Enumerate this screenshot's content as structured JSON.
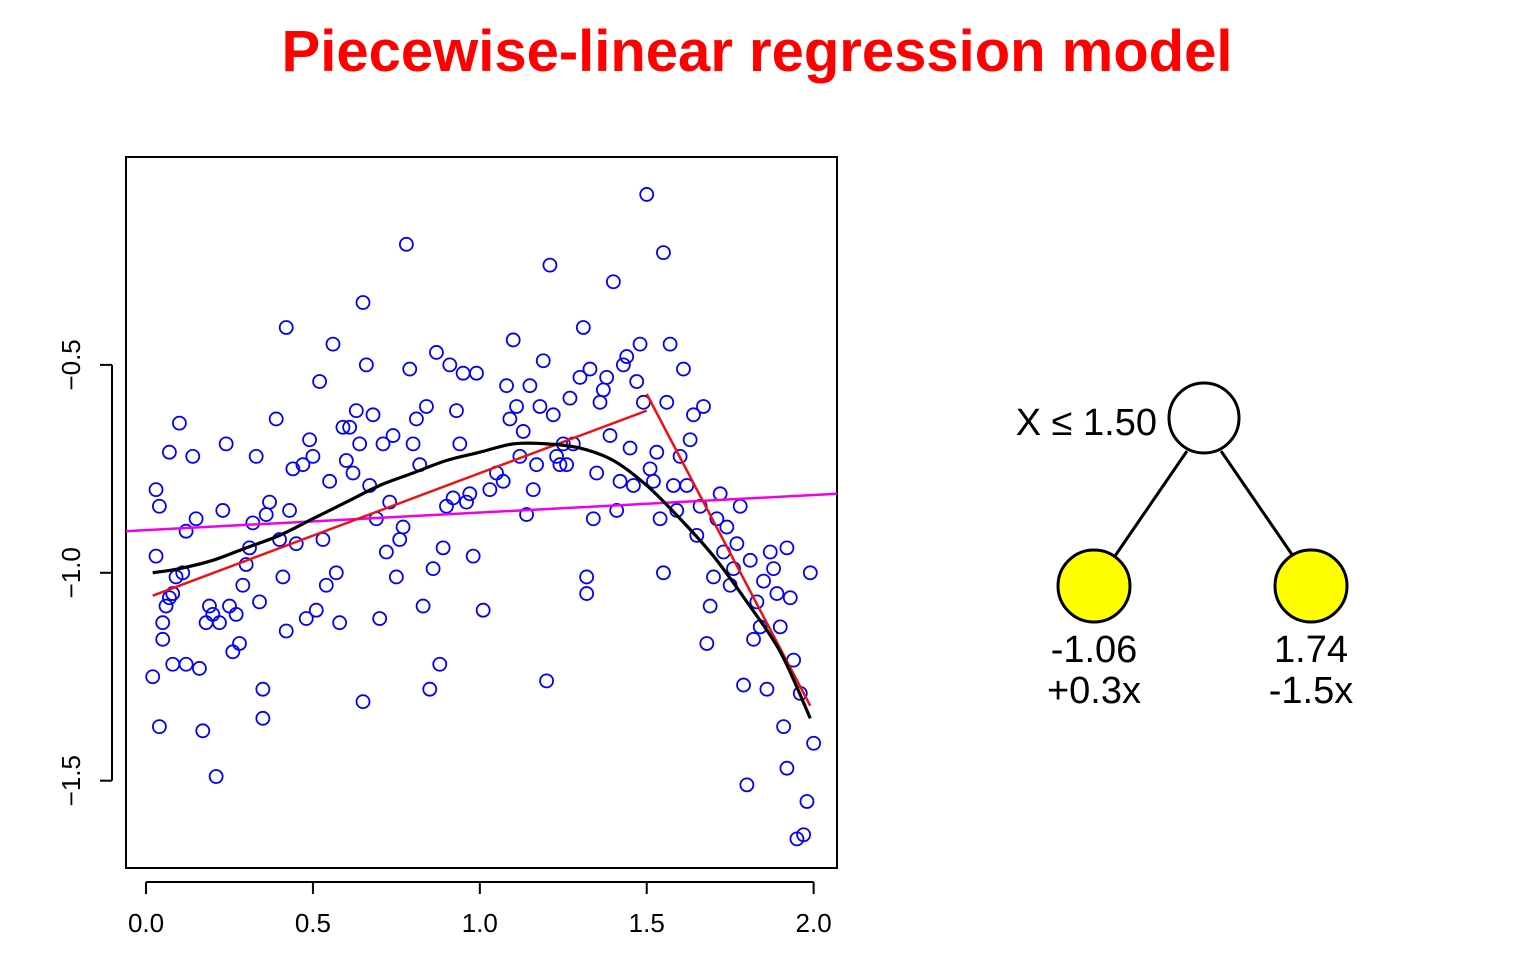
{
  "title": "Piecewise-linear regression model",
  "chart_data": {
    "type": "scatter",
    "xlim": [
      -0.06,
      2.07
    ],
    "ylim": [
      -1.71,
      0.0
    ],
    "x_ticks": [
      {
        "value": 0.0,
        "label": "0.0"
      },
      {
        "value": 0.5,
        "label": "0.5"
      },
      {
        "value": 1.0,
        "label": "1.0"
      },
      {
        "value": 1.5,
        "label": "1.5"
      },
      {
        "value": 2.0,
        "label": "2.0"
      }
    ],
    "y_ticks": [
      {
        "value": -0.5,
        "label": "−0.5"
      },
      {
        "value": -1.0,
        "label": "−1.0"
      },
      {
        "value": -1.5,
        "label": "−1.5"
      }
    ],
    "grid": false,
    "colors": {
      "points": "#0000ff",
      "smooth": "#000000",
      "piecewise": "#ee1111",
      "global_fit": "#ee00ee"
    },
    "points": [
      [
        0.02,
        -1.25
      ],
      [
        0.03,
        -0.96
      ],
      [
        0.03,
        -0.8
      ],
      [
        0.04,
        -0.84
      ],
      [
        0.04,
        -1.37
      ],
      [
        0.05,
        -1.12
      ],
      [
        0.05,
        -1.16
      ],
      [
        0.06,
        -1.08
      ],
      [
        0.07,
        -0.71
      ],
      [
        0.07,
        -1.06
      ],
      [
        0.08,
        -1.05
      ],
      [
        0.08,
        -1.22
      ],
      [
        0.09,
        -1.01
      ],
      [
        0.1,
        -0.64
      ],
      [
        0.11,
        -1.0
      ],
      [
        0.12,
        -0.9
      ],
      [
        0.12,
        -1.22
      ],
      [
        0.14,
        -0.72
      ],
      [
        0.15,
        -0.87
      ],
      [
        0.16,
        -1.23
      ],
      [
        0.17,
        -1.38
      ],
      [
        0.18,
        -1.12
      ],
      [
        0.19,
        -1.08
      ],
      [
        0.2,
        -1.1
      ],
      [
        0.21,
        -1.49
      ],
      [
        0.22,
        -1.12
      ],
      [
        0.23,
        -0.85
      ],
      [
        0.24,
        -0.69
      ],
      [
        0.25,
        -1.08
      ],
      [
        0.26,
        -1.19
      ],
      [
        0.27,
        -1.1
      ],
      [
        0.28,
        -1.17
      ],
      [
        0.29,
        -1.03
      ],
      [
        0.3,
        -0.98
      ],
      [
        0.31,
        -0.94
      ],
      [
        0.32,
        -0.88
      ],
      [
        0.33,
        -0.72
      ],
      [
        0.34,
        -1.07
      ],
      [
        0.35,
        -1.28
      ],
      [
        0.35,
        -1.35
      ],
      [
        0.36,
        -0.86
      ],
      [
        0.37,
        -0.83
      ],
      [
        0.39,
        -0.63
      ],
      [
        0.4,
        -0.92
      ],
      [
        0.41,
        -1.01
      ],
      [
        0.42,
        -1.14
      ],
      [
        0.42,
        -0.41
      ],
      [
        0.43,
        -0.85
      ],
      [
        0.44,
        -0.75
      ],
      [
        0.45,
        -0.93
      ],
      [
        0.47,
        -0.74
      ],
      [
        0.48,
        -1.11
      ],
      [
        0.49,
        -0.68
      ],
      [
        0.5,
        -0.72
      ],
      [
        0.51,
        -1.09
      ],
      [
        0.52,
        -0.54
      ],
      [
        0.53,
        -0.92
      ],
      [
        0.54,
        -1.03
      ],
      [
        0.55,
        -0.78
      ],
      [
        0.56,
        -0.45
      ],
      [
        0.57,
        -1.0
      ],
      [
        0.58,
        -1.12
      ],
      [
        0.59,
        -0.65
      ],
      [
        0.6,
        -0.73
      ],
      [
        0.61,
        -0.65
      ],
      [
        0.62,
        -0.76
      ],
      [
        0.63,
        -0.61
      ],
      [
        0.64,
        -0.69
      ],
      [
        0.65,
        -1.31
      ],
      [
        0.65,
        -0.35
      ],
      [
        0.66,
        -0.5
      ],
      [
        0.67,
        -0.79
      ],
      [
        0.68,
        -0.62
      ],
      [
        0.69,
        -0.87
      ],
      [
        0.7,
        -1.11
      ],
      [
        0.71,
        -0.69
      ],
      [
        0.72,
        -0.95
      ],
      [
        0.73,
        -0.83
      ],
      [
        0.74,
        -0.67
      ],
      [
        0.75,
        -1.01
      ],
      [
        0.76,
        -0.92
      ],
      [
        0.77,
        -0.89
      ],
      [
        0.78,
        -0.21
      ],
      [
        0.79,
        -0.51
      ],
      [
        0.8,
        -0.69
      ],
      [
        0.81,
        -0.63
      ],
      [
        0.82,
        -0.74
      ],
      [
        0.83,
        -1.08
      ],
      [
        0.84,
        -0.6
      ],
      [
        0.85,
        -1.28
      ],
      [
        0.86,
        -0.99
      ],
      [
        0.87,
        -0.47
      ],
      [
        0.88,
        -1.22
      ],
      [
        0.89,
        -0.94
      ],
      [
        0.9,
        -0.84
      ],
      [
        0.91,
        -0.5
      ],
      [
        0.92,
        -0.82
      ],
      [
        0.93,
        -0.61
      ],
      [
        0.94,
        -0.69
      ],
      [
        0.95,
        -0.52
      ],
      [
        0.96,
        -0.83
      ],
      [
        0.97,
        -0.81
      ],
      [
        0.98,
        -0.96
      ],
      [
        0.99,
        -0.52
      ],
      [
        1.01,
        -1.09
      ],
      [
        1.03,
        -0.8
      ],
      [
        1.05,
        -0.76
      ],
      [
        1.07,
        -0.78
      ],
      [
        1.08,
        -0.55
      ],
      [
        1.09,
        -0.63
      ],
      [
        1.1,
        -0.44
      ],
      [
        1.11,
        -0.6
      ],
      [
        1.12,
        -0.72
      ],
      [
        1.13,
        -0.66
      ],
      [
        1.14,
        -0.86
      ],
      [
        1.15,
        -0.55
      ],
      [
        1.16,
        -0.8
      ],
      [
        1.17,
        -0.74
      ],
      [
        1.18,
        -0.6
      ],
      [
        1.19,
        -0.49
      ],
      [
        1.2,
        -1.26
      ],
      [
        1.21,
        -0.26
      ],
      [
        1.22,
        -0.62
      ],
      [
        1.23,
        -0.72
      ],
      [
        1.24,
        -0.74
      ],
      [
        1.25,
        -0.69
      ],
      [
        1.26,
        -0.74
      ],
      [
        1.27,
        -0.58
      ],
      [
        1.28,
        -0.69
      ],
      [
        1.3,
        -0.53
      ],
      [
        1.31,
        -0.41
      ],
      [
        1.32,
        -1.05
      ],
      [
        1.32,
        -1.01
      ],
      [
        1.33,
        -0.51
      ],
      [
        1.34,
        -0.87
      ],
      [
        1.35,
        -0.76
      ],
      [
        1.36,
        -0.59
      ],
      [
        1.37,
        -0.56
      ],
      [
        1.38,
        -0.53
      ],
      [
        1.39,
        -0.67
      ],
      [
        1.4,
        -0.3
      ],
      [
        1.41,
        -0.85
      ],
      [
        1.42,
        -0.78
      ],
      [
        1.43,
        -0.5
      ],
      [
        1.44,
        -0.48
      ],
      [
        1.45,
        -0.7
      ],
      [
        1.46,
        -0.79
      ],
      [
        1.47,
        -0.54
      ],
      [
        1.48,
        -0.45
      ],
      [
        1.49,
        -0.59
      ],
      [
        1.5,
        -0.09
      ],
      [
        1.51,
        -0.75
      ],
      [
        1.52,
        -0.78
      ],
      [
        1.53,
        -0.71
      ],
      [
        1.54,
        -0.87
      ],
      [
        1.55,
        -0.23
      ],
      [
        1.55,
        -1.0
      ],
      [
        1.56,
        -0.59
      ],
      [
        1.57,
        -0.45
      ],
      [
        1.58,
        -0.79
      ],
      [
        1.59,
        -0.85
      ],
      [
        1.6,
        -0.72
      ],
      [
        1.61,
        -0.51
      ],
      [
        1.62,
        -0.79
      ],
      [
        1.63,
        -0.68
      ],
      [
        1.64,
        -0.62
      ],
      [
        1.65,
        -0.91
      ],
      [
        1.66,
        -0.84
      ],
      [
        1.67,
        -0.6
      ],
      [
        1.68,
        -1.17
      ],
      [
        1.69,
        -1.08
      ],
      [
        1.7,
        -1.01
      ],
      [
        1.71,
        -0.87
      ],
      [
        1.72,
        -0.81
      ],
      [
        1.73,
        -0.95
      ],
      [
        1.74,
        -0.89
      ],
      [
        1.75,
        -1.03
      ],
      [
        1.76,
        -0.99
      ],
      [
        1.77,
        -0.93
      ],
      [
        1.78,
        -0.84
      ],
      [
        1.79,
        -1.27
      ],
      [
        1.8,
        -1.51
      ],
      [
        1.81,
        -0.97
      ],
      [
        1.82,
        -1.16
      ],
      [
        1.83,
        -1.07
      ],
      [
        1.84,
        -1.13
      ],
      [
        1.85,
        -1.02
      ],
      [
        1.86,
        -1.28
      ],
      [
        1.87,
        -0.95
      ],
      [
        1.88,
        -0.99
      ],
      [
        1.89,
        -1.05
      ],
      [
        1.9,
        -1.13
      ],
      [
        1.91,
        -1.37
      ],
      [
        1.92,
        -1.47
      ],
      [
        1.92,
        -0.94
      ],
      [
        1.93,
        -1.06
      ],
      [
        1.94,
        -1.21
      ],
      [
        1.95,
        -1.64
      ],
      [
        1.96,
        -1.29
      ],
      [
        1.97,
        -1.63
      ],
      [
        1.98,
        -1.55
      ],
      [
        1.99,
        -1.0
      ],
      [
        2.0,
        -1.41
      ]
    ],
    "smooth_curve": {
      "x": [
        0.02,
        0.1,
        0.2,
        0.3,
        0.4,
        0.5,
        0.6,
        0.7,
        0.8,
        0.9,
        1.0,
        1.1,
        1.2,
        1.3,
        1.4,
        1.5,
        1.6,
        1.7,
        1.8,
        1.9,
        1.99
      ],
      "y": [
        -1.0,
        -0.99,
        -0.97,
        -0.94,
        -0.91,
        -0.87,
        -0.83,
        -0.79,
        -0.76,
        -0.73,
        -0.71,
        -0.69,
        -0.69,
        -0.7,
        -0.73,
        -0.79,
        -0.87,
        -0.96,
        -1.07,
        -1.19,
        -1.35
      ]
    },
    "piecewise_segments": [
      {
        "x": [
          0.02,
          1.5
        ],
        "y": [
          -1.055,
          -0.61
        ]
      },
      {
        "x": [
          1.5,
          1.99
        ],
        "y": [
          -0.57,
          -1.32
        ]
      }
    ],
    "global_fit": {
      "x": [
        -0.06,
        2.07
      ],
      "y": [
        -0.9,
        -0.81
      ]
    }
  },
  "tree": {
    "split_label": "X ≤ 1.50",
    "left_leaf": {
      "line1": "-1.06",
      "line2": "+0.3x"
    },
    "right_leaf": {
      "line1": "1.74",
      "line2": "-1.5x"
    },
    "colors": {
      "root": "#ffffff",
      "leaf": "#ffff00"
    }
  }
}
